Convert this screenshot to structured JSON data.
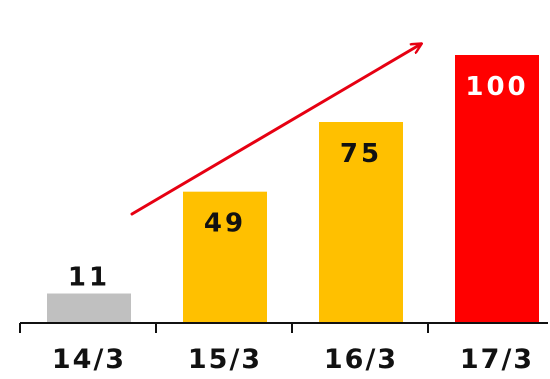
{
  "chart_data": {
    "type": "bar",
    "title": "",
    "xlabel": "",
    "ylabel": "",
    "categories": [
      "14/3",
      "15/3",
      "16/3",
      "17/3"
    ],
    "values": [
      11,
      49,
      75,
      100
    ],
    "labels": [
      "11",
      "49",
      "75",
      "100"
    ],
    "ylim": [
      0,
      100
    ],
    "grid": false,
    "colors": [
      "#c0c0c0",
      "#ffc000",
      "#ffc000",
      "#ff0000"
    ],
    "label_colors": [
      "#111111",
      "#111111",
      "#111111",
      "#ffffff"
    ],
    "trend_arrow": {
      "color": "#e60012",
      "direction": "up-right"
    }
  }
}
